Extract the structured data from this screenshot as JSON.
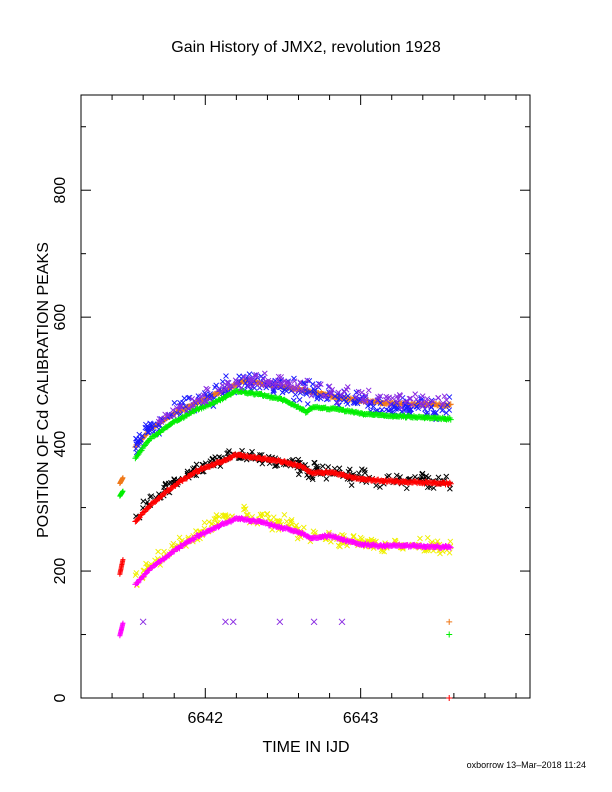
{
  "chart_data": {
    "type": "scatter",
    "title": "Gain History of JMX2, revolution 1928",
    "xlabel": "TIME IN IJD",
    "ylabel": "POSITION OF Cd CALIBRATION PEAKS",
    "footer": "oxborrow 13–Mar–2018 11:24",
    "xlim": [
      6641.2,
      6644.09
    ],
    "ylim": [
      0,
      950
    ],
    "x_ticks": [
      6642,
      6643
    ],
    "x_tick_labels": [
      "6642",
      "6643"
    ],
    "y_ticks": [
      0,
      200,
      400,
      600,
      800
    ],
    "y_tick_labels": [
      "0",
      "200",
      "400",
      "600",
      "800"
    ],
    "grid": false,
    "legend": "none",
    "colors": {
      "orange": "#f07818",
      "blue": "#1a1aff",
      "purple": "#8a2be2",
      "green": "#00ee00",
      "red": "#ff0000",
      "black": "#000000",
      "magenta": "#ff00ff",
      "yellow": "#f0f000"
    },
    "series": [
      {
        "color": "#f07818",
        "marker": "plus",
        "style": "dense",
        "x": [
          6641.45,
          6641.47,
          6641.55,
          6641.65,
          6641.8,
          6641.95,
          6642.1,
          6642.25,
          6642.4,
          6642.55,
          6642.7,
          6642.85,
          6643.0,
          6643.15,
          6643.3,
          6643.45,
          6643.58
        ],
        "y": [
          338,
          347,
          395,
          425,
          448,
          466,
          482,
          500,
          495,
          488,
          482,
          473,
          468,
          465,
          463,
          463,
          461
        ]
      },
      {
        "color": "#1a1aff",
        "marker": "x",
        "style": "scatter",
        "noise": 14,
        "count": 260,
        "x": [
          6641.55,
          6641.65,
          6641.8,
          6641.95,
          6642.1,
          6642.25,
          6642.4,
          6642.55,
          6642.7,
          6642.85,
          6643.0,
          6643.15,
          6643.3,
          6643.45,
          6643.58
        ],
        "y": [
          395,
          425,
          448,
          466,
          482,
          500,
          495,
          488,
          482,
          473,
          468,
          462,
          458,
          456,
          455
        ]
      },
      {
        "color": "#00ee00",
        "marker": "plus",
        "style": "dense",
        "x": [
          6641.45,
          6641.47,
          6641.55,
          6641.65,
          6641.8,
          6641.95,
          6642.1,
          6642.2,
          6642.35,
          6642.5,
          6642.62,
          6642.65,
          6642.7,
          6642.85,
          6643.0,
          6643.15,
          6643.3,
          6643.45,
          6643.58
        ],
        "y": [
          318,
          326,
          378,
          410,
          435,
          455,
          470,
          484,
          478,
          470,
          455,
          450,
          458,
          455,
          448,
          445,
          443,
          441,
          440
        ]
      },
      {
        "color": "#000000",
        "marker": "x",
        "style": "scatter",
        "noise": 10,
        "count": 230,
        "x": [
          6641.55,
          6641.65,
          6641.8,
          6641.95,
          6642.1,
          6642.25,
          6642.4,
          6642.55,
          6642.65,
          6642.8,
          6643.0,
          6643.15,
          6643.3,
          6643.45,
          6643.58
        ],
        "y": [
          285,
          310,
          340,
          360,
          375,
          382,
          375,
          372,
          358,
          358,
          348,
          344,
          343,
          341,
          340
        ]
      },
      {
        "color": "#ff0000",
        "marker": "plus",
        "style": "dense",
        "x": [
          6641.45,
          6641.47,
          6641.55,
          6641.65,
          6641.8,
          6641.95,
          6642.1,
          6642.2,
          6642.35,
          6642.5,
          6642.62,
          6642.68,
          6642.8,
          6643.0,
          6643.15,
          6643.3,
          6643.45,
          6643.58
        ],
        "y": [
          195,
          218,
          278,
          305,
          335,
          358,
          372,
          383,
          378,
          372,
          365,
          355,
          356,
          345,
          342,
          340,
          339,
          338
        ]
      },
      {
        "color": "#f0f000",
        "marker": "x",
        "style": "scatter",
        "noise": 10,
        "count": 230,
        "x": [
          6641.55,
          6641.65,
          6641.8,
          6641.95,
          6642.1,
          6642.25,
          6642.4,
          6642.55,
          6642.65,
          6642.8,
          6643.0,
          6643.15,
          6643.3,
          6643.45,
          6643.58
        ],
        "y": [
          182,
          210,
          238,
          260,
          280,
          288,
          280,
          272,
          255,
          255,
          245,
          242,
          241,
          240,
          240
        ]
      },
      {
        "color": "#ff00ff",
        "marker": "plus",
        "style": "dense",
        "x": [
          6641.45,
          6641.47,
          6641.55,
          6641.65,
          6641.8,
          6641.95,
          6642.1,
          6642.2,
          6642.35,
          6642.5,
          6642.62,
          6642.68,
          6642.8,
          6643.0,
          6643.15,
          6643.3,
          6643.45,
          6643.58
        ],
        "y": [
          98,
          118,
          178,
          205,
          232,
          255,
          272,
          283,
          278,
          268,
          260,
          252,
          255,
          242,
          240,
          240,
          238,
          238
        ]
      },
      {
        "color": "#8a2be2",
        "marker": "x",
        "style": "points",
        "x": [
          6641.6,
          6642.13,
          6642.18,
          6642.48,
          6642.7,
          6642.88
        ],
        "y": [
          120,
          120,
          120,
          120,
          120,
          120
        ]
      },
      {
        "color": "#8a2be2",
        "marker": "x",
        "style": "scatter",
        "noise": 10,
        "count": 150,
        "x": [
          6641.7,
          6641.95,
          6642.2,
          6642.4,
          6642.6,
          6642.9,
          6643.2,
          6643.58
        ],
        "y": [
          440,
          470,
          500,
          502,
          492,
          478,
          470,
          468
        ]
      },
      {
        "color": "#f07818",
        "marker": "plus",
        "style": "points",
        "x": [
          6643.57
        ],
        "y": [
          120
        ]
      },
      {
        "color": "#00ee00",
        "marker": "plus",
        "style": "points",
        "x": [
          6643.57
        ],
        "y": [
          100
        ]
      },
      {
        "color": "#ff0000",
        "marker": "plus",
        "style": "points",
        "x": [
          6643.57
        ],
        "y": [
          0
        ]
      }
    ]
  }
}
